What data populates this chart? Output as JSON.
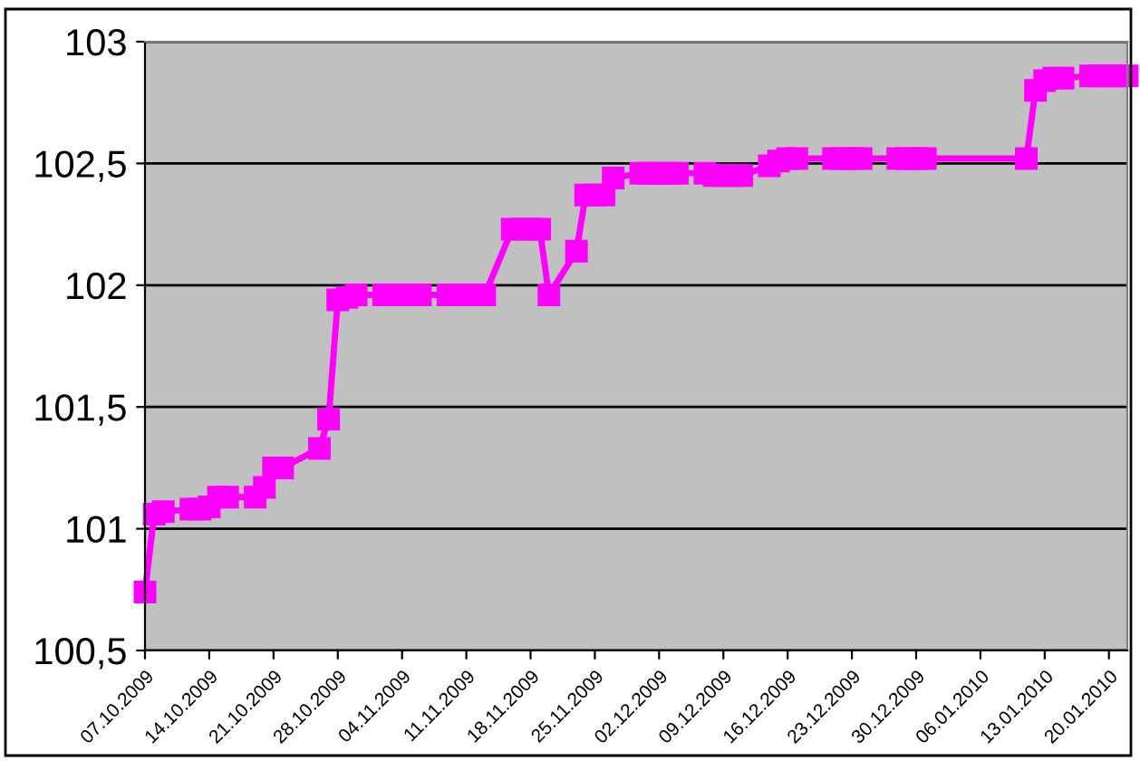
{
  "chart_data": {
    "type": "line",
    "marker": "square",
    "line_style": "solid",
    "grid": "y",
    "x": [
      "2009-10-07",
      "2009-10-08",
      "2009-10-09",
      "2009-10-12",
      "2009-10-13",
      "2009-10-14",
      "2009-10-15",
      "2009-10-16",
      "2009-10-19",
      "2009-10-20",
      "2009-10-21",
      "2009-10-22",
      "2009-10-26",
      "2009-10-27",
      "2009-10-28",
      "2009-10-29",
      "2009-10-30",
      "2009-11-02",
      "2009-11-03",
      "2009-11-04",
      "2009-11-05",
      "2009-11-06",
      "2009-11-09",
      "2009-11-10",
      "2009-11-11",
      "2009-11-12",
      "2009-11-13",
      "2009-11-16",
      "2009-11-17",
      "2009-11-18",
      "2009-11-19",
      "2009-11-20",
      "2009-11-23",
      "2009-11-24",
      "2009-11-25",
      "2009-11-26",
      "2009-11-27",
      "2009-11-30",
      "2009-12-01",
      "2009-12-02",
      "2009-12-03",
      "2009-12-04",
      "2009-12-07",
      "2009-12-08",
      "2009-12-09",
      "2009-12-10",
      "2009-12-11",
      "2009-12-14",
      "2009-12-15",
      "2009-12-16",
      "2009-12-17",
      "2009-12-21",
      "2009-12-22",
      "2009-12-23",
      "2009-12-24",
      "2009-12-28",
      "2009-12-29",
      "2009-12-30",
      "2009-12-31",
      "2010-01-11",
      "2010-01-12",
      "2010-01-13",
      "2010-01-14",
      "2010-01-15",
      "2010-01-18",
      "2010-01-19",
      "2010-01-20",
      "2010-01-21",
      "2010-01-22"
    ],
    "series": [
      {
        "color": "#ff00ff",
        "values": [
          100.74,
          101.06,
          101.07,
          101.08,
          101.08,
          101.09,
          101.13,
          101.13,
          101.13,
          101.17,
          101.25,
          101.25,
          101.33,
          101.45,
          101.94,
          101.95,
          101.96,
          101.96,
          101.96,
          101.96,
          101.96,
          101.96,
          101.96,
          101.96,
          101.96,
          101.96,
          101.96,
          102.23,
          102.23,
          102.23,
          102.23,
          101.96,
          102.14,
          102.37,
          102.37,
          102.37,
          102.44,
          102.46,
          102.46,
          102.46,
          102.46,
          102.46,
          102.46,
          102.45,
          102.45,
          102.45,
          102.45,
          102.49,
          102.51,
          102.52,
          102.52,
          102.52,
          102.52,
          102.52,
          102.52,
          102.52,
          102.52,
          102.52,
          102.52,
          102.52,
          102.8,
          102.84,
          102.85,
          102.85,
          102.86,
          102.86,
          102.86,
          102.86,
          102.86
        ]
      }
    ],
    "xlim": [
      "2009-10-07",
      "2010-01-22"
    ],
    "xticks": [
      {
        "value": "2009-10-07",
        "label": "07.10.2009"
      },
      {
        "value": "2009-10-14",
        "label": "14.10.2009"
      },
      {
        "value": "2009-10-21",
        "label": "21.10.2009"
      },
      {
        "value": "2009-10-28",
        "label": "28.10.2009"
      },
      {
        "value": "2009-11-04",
        "label": "04.11.2009"
      },
      {
        "value": "2009-11-11",
        "label": "11.11.2009"
      },
      {
        "value": "2009-11-18",
        "label": "18.11.2009"
      },
      {
        "value": "2009-11-25",
        "label": "25.11.2009"
      },
      {
        "value": "2009-12-02",
        "label": "02.12.2009"
      },
      {
        "value": "2009-12-09",
        "label": "09.12.2009"
      },
      {
        "value": "2009-12-16",
        "label": "16.12.2009"
      },
      {
        "value": "2009-12-23",
        "label": "23.12.2009"
      },
      {
        "value": "2009-12-30",
        "label": "30.12.2009"
      },
      {
        "value": "2010-01-06",
        "label": "06.01.2010"
      },
      {
        "value": "2010-01-13",
        "label": "13.01.2010"
      },
      {
        "value": "2010-01-20",
        "label": "20.01.2010"
      }
    ],
    "ylim": [
      100.5,
      103
    ],
    "yticks": [
      {
        "value": 100.5,
        "label": "100,5"
      },
      101,
      {
        "value": 101.5,
        "label": "101,5"
      },
      102,
      {
        "value": 102.5,
        "label": "102,5"
      },
      103
    ]
  }
}
